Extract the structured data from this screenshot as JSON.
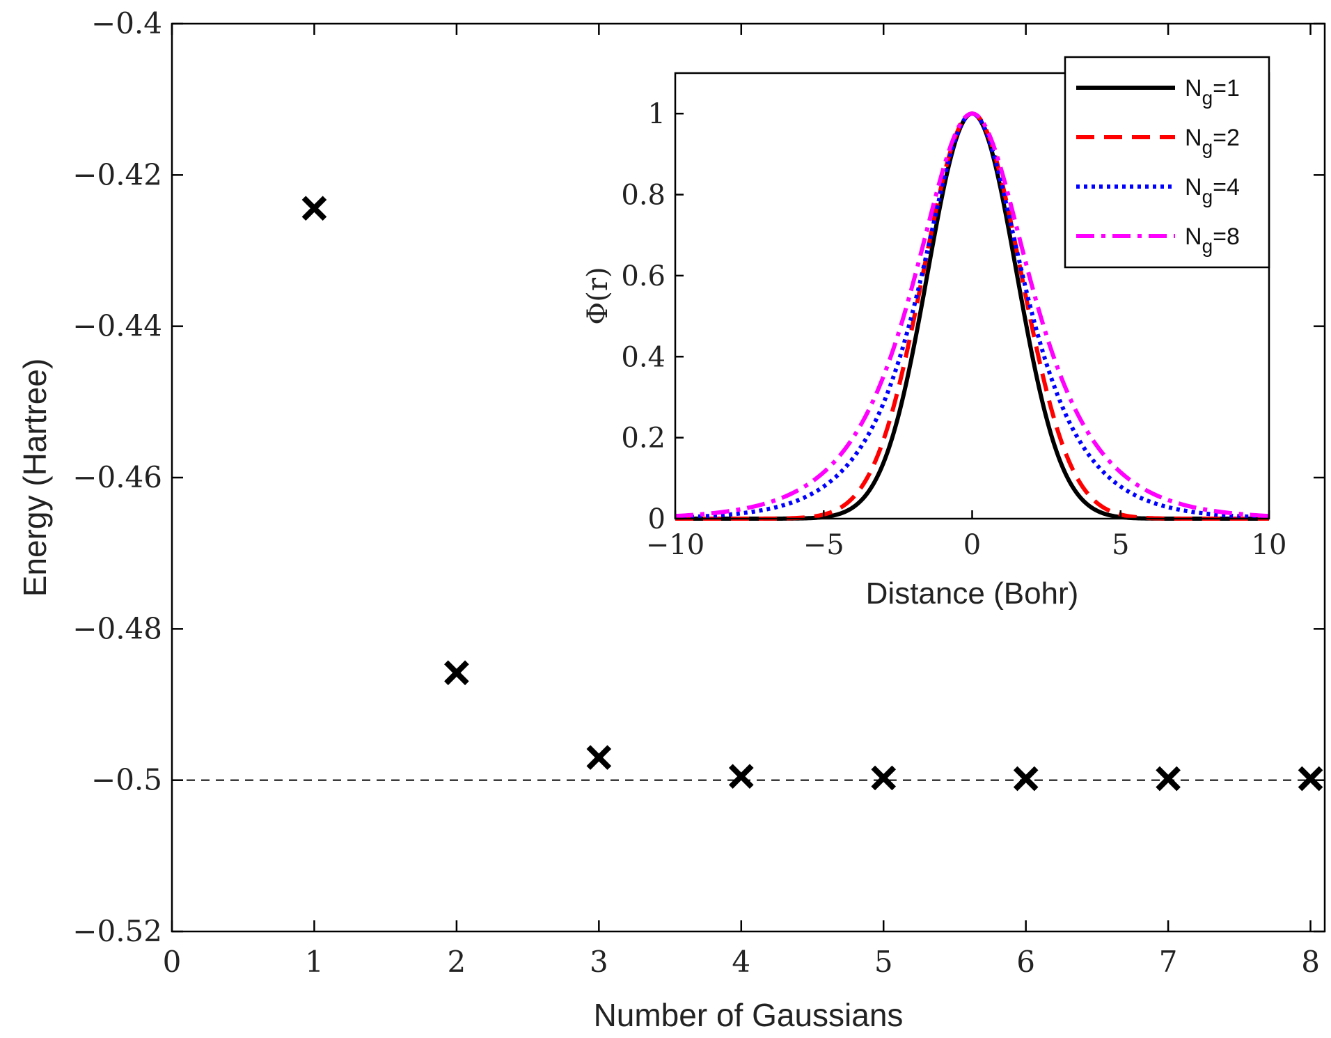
{
  "chart_data": [
    {
      "type": "scatter",
      "xlabel": "Number of Gaussians",
      "ylabel": "Energy (Hartree)",
      "xlim": [
        0,
        8.1
      ],
      "ylim": [
        -0.52,
        -0.4
      ],
      "xticks": [
        0,
        1,
        2,
        3,
        4,
        5,
        6,
        7,
        8
      ],
      "yticks": [
        -0.52,
        -0.5,
        -0.48,
        -0.46,
        -0.44,
        -0.42,
        -0.4
      ],
      "ytick_labels": [
        "−0.52",
        "−0.5",
        "−0.48",
        "−0.46",
        "−0.44",
        "−0.42",
        "−0.4"
      ],
      "series": [
        {
          "name": "Energy",
          "marker": "x",
          "color": "#000000",
          "x": [
            1,
            2,
            3,
            4,
            5,
            6,
            7,
            8
          ],
          "y": [
            -0.4244,
            -0.4858,
            -0.497,
            -0.4995,
            -0.4997,
            -0.4998,
            -0.4998,
            -0.4998
          ]
        }
      ],
      "reference_line": {
        "y": -0.5,
        "style": "dashed",
        "color": "#000000"
      }
    },
    {
      "type": "line",
      "xlabel": "Distance (Bohr)",
      "ylabel": "Φ(r)",
      "xlim": [
        -10,
        10
      ],
      "ylim": [
        0,
        1.1
      ],
      "xticks": [
        -10,
        -5,
        0,
        5,
        10
      ],
      "xtick_labels": [
        "−10",
        "−5",
        "0",
        "5",
        "10"
      ],
      "yticks": [
        0,
        0.2,
        0.4,
        0.6,
        0.8,
        1
      ],
      "ytick_labels": [
        "0",
        "0.2",
        "0.4",
        "0.6",
        "0.8",
        "1"
      ],
      "legend_position": "top-right",
      "series": [
        {
          "name": "Ng=1",
          "legend_main": "N",
          "legend_sub": "g",
          "legend_rest": "=1",
          "color": "#000000",
          "style": "solid",
          "shape": "gaussian",
          "width_param": 1.5
        },
        {
          "name": "Ng=2",
          "legend_main": "N",
          "legend_sub": "g",
          "legend_rest": "=2",
          "color": "#ff0000",
          "style": "dashed",
          "shape": "gaussian",
          "width_param": 1.65
        },
        {
          "name": "Ng=4",
          "legend_main": "N",
          "legend_sub": "g",
          "legend_rest": "=4",
          "color": "#0000ff",
          "style": "dotted",
          "shape": "sech",
          "width_param": 1.55
        },
        {
          "name": "Ng=8",
          "legend_main": "N",
          "legend_sub": "g",
          "legend_rest": "=8",
          "color": "#ff00ff",
          "style": "dashdot",
          "shape": "sech",
          "width_param": 1.75
        }
      ]
    }
  ]
}
